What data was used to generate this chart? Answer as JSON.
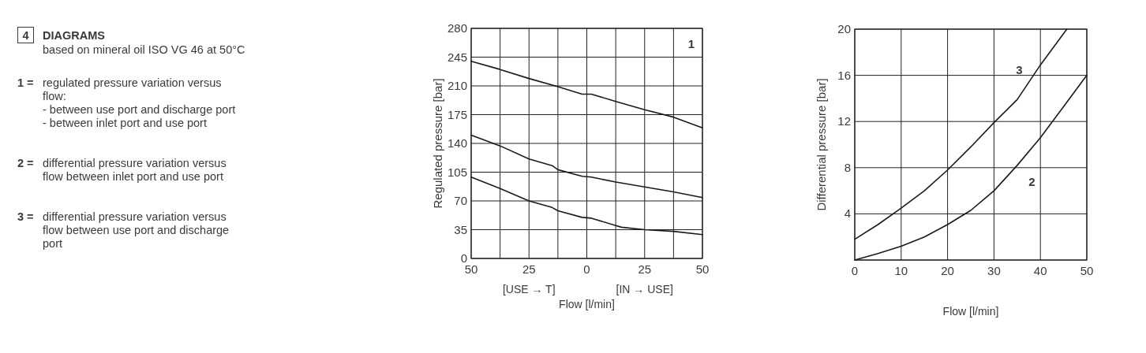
{
  "chart_data": [
    {
      "type": "other",
      "title": "DIAGRAMS",
      "subtitle": "based on mineral oil ISO VG 46 at 50°C",
      "annotations": [
        "4",
        "1 =",
        "regulated pressure variation versus\nflow:\n- between use port and discharge port\n- between inlet port and use port",
        "2 =",
        "differential pressure variation versus\nflow between inlet port and use port",
        "3 =",
        "differential pressure variation versus\nflow between use port and discharge\nport"
      ]
    },
    {
      "type": "line",
      "xlabel": "Flow  [l/min]",
      "ylabel": "Regulated pressure [bar]",
      "annotations": [
        "1",
        "[USE → T]",
        "[IN → USE]"
      ],
      "grid": true,
      "xlim": [
        -50,
        50
      ],
      "xticks": [
        {
          "value": -50,
          "label": "50"
        },
        {
          "value": -37.5,
          "label": null
        },
        {
          "value": -25,
          "label": "25"
        },
        {
          "value": -12.5,
          "label": null
        },
        0,
        {
          "value": 12.5,
          "label": null
        },
        25,
        {
          "value": 37.5,
          "label": null
        },
        50
      ],
      "ylim": [
        0,
        280
      ],
      "yticks": [
        0,
        35,
        70,
        105,
        140,
        175,
        210,
        245,
        280
      ],
      "series": [
        {
          "color": "#1a1a1a",
          "x": [
            -50,
            -37.5,
            -25,
            -12.5,
            -2,
            2,
            12.5,
            25,
            37.5,
            50
          ],
          "values": [
            240,
            230,
            219,
            209,
            200,
            200,
            191,
            181,
            172,
            159
          ]
        },
        {
          "color": "#1a1a1a",
          "x": [
            -50,
            -37.5,
            -25,
            -15,
            -12.5,
            -2,
            2,
            12.5,
            25,
            37.5,
            50
          ],
          "values": [
            150,
            137,
            121,
            113,
            108,
            100,
            99,
            93,
            87,
            81,
            74
          ]
        },
        {
          "color": "#1a1a1a",
          "x": [
            -50,
            -37.5,
            -25,
            -15,
            -12.5,
            -2,
            2,
            12.5,
            15,
            25,
            37.5,
            50
          ],
          "values": [
            99,
            85,
            70,
            62,
            58,
            50,
            49,
            40,
            38,
            35,
            33,
            29
          ]
        }
      ]
    },
    {
      "type": "line",
      "xlabel": "Flow  [l/min]",
      "ylabel": "Differential pressure [bar]",
      "grid": true,
      "xlim": [
        0,
        50
      ],
      "xticks": [
        0,
        10,
        20,
        30,
        40,
        50
      ],
      "ylim": [
        0,
        20
      ],
      "yticks": [
        {
          "value": 0,
          "label": null
        },
        4,
        8,
        12,
        16,
        20
      ],
      "series": [
        {
          "name": "3",
          "color": "#1a1a1a",
          "x": [
            0,
            5,
            10,
            15,
            20,
            25,
            30,
            35,
            38.5,
            40,
            45.7
          ],
          "values": [
            1.8,
            3.07,
            4.5,
            6.0,
            7.8,
            9.8,
            11.9,
            13.9,
            16,
            16.9,
            20
          ]
        },
        {
          "name": "2",
          "color": "#1a1a1a",
          "x": [
            0,
            5,
            10,
            15,
            20,
            25,
            30,
            35,
            40,
            45,
            50
          ],
          "values": [
            0,
            0.57,
            1.2,
            2.0,
            3.07,
            4.3,
            6.0,
            8.2,
            10.6,
            13.3,
            16
          ]
        }
      ]
    }
  ]
}
